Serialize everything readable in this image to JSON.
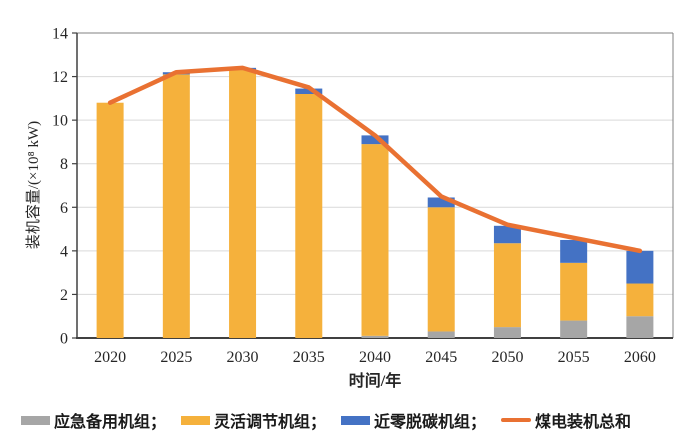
{
  "chart_data": {
    "type": "bar",
    "subtype": "stacked-bars-with-total-line",
    "title": "",
    "xlabel": "时间/年",
    "ylabel": "装机容量/(×10⁸ kW)",
    "categories": [
      "2020",
      "2025",
      "2030",
      "2035",
      "2040",
      "2045",
      "2050",
      "2055",
      "2060"
    ],
    "series": [
      {
        "name": "应急备用机组",
        "type": "bar",
        "color": "#A6A6A6",
        "values": [
          0,
          0,
          0,
          0,
          0.1,
          0.3,
          0.5,
          0.8,
          1.0
        ]
      },
      {
        "name": "灵活调节机组",
        "type": "bar",
        "color": "#F5B13C",
        "values": [
          10.8,
          12.1,
          12.3,
          11.2,
          8.8,
          5.7,
          3.85,
          2.65,
          1.5
        ]
      },
      {
        "name": "近零脱碳机组",
        "type": "bar",
        "color": "#4472C4",
        "values": [
          0,
          0.1,
          0.1,
          0.25,
          0.4,
          0.45,
          0.8,
          1.05,
          1.5
        ]
      },
      {
        "name": "煤电装机总和",
        "type": "line",
        "color": "#E97132",
        "values": [
          10.8,
          12.2,
          12.4,
          11.5,
          9.3,
          6.5,
          5.2,
          4.6,
          4.0
        ]
      }
    ],
    "ylim": [
      0,
      14
    ],
    "yticks": [
      0,
      2,
      4,
      6,
      8,
      10,
      12,
      14
    ],
    "grid": true,
    "gridline_color": "#D9D9D9",
    "axis_color": "#404040",
    "border_color": "#808080",
    "legend_position": "bottom"
  },
  "legend": {
    "items": [
      {
        "label": "应急备用机组；",
        "swatch": "bar",
        "color": "#A6A6A6"
      },
      {
        "label": "灵活调节机组；",
        "swatch": "bar",
        "color": "#F5B13C"
      },
      {
        "label": "近零脱碳机组；",
        "swatch": "bar",
        "color": "#4472C4"
      },
      {
        "label": "煤电装机总和",
        "swatch": "line",
        "color": "#E97132"
      }
    ]
  }
}
